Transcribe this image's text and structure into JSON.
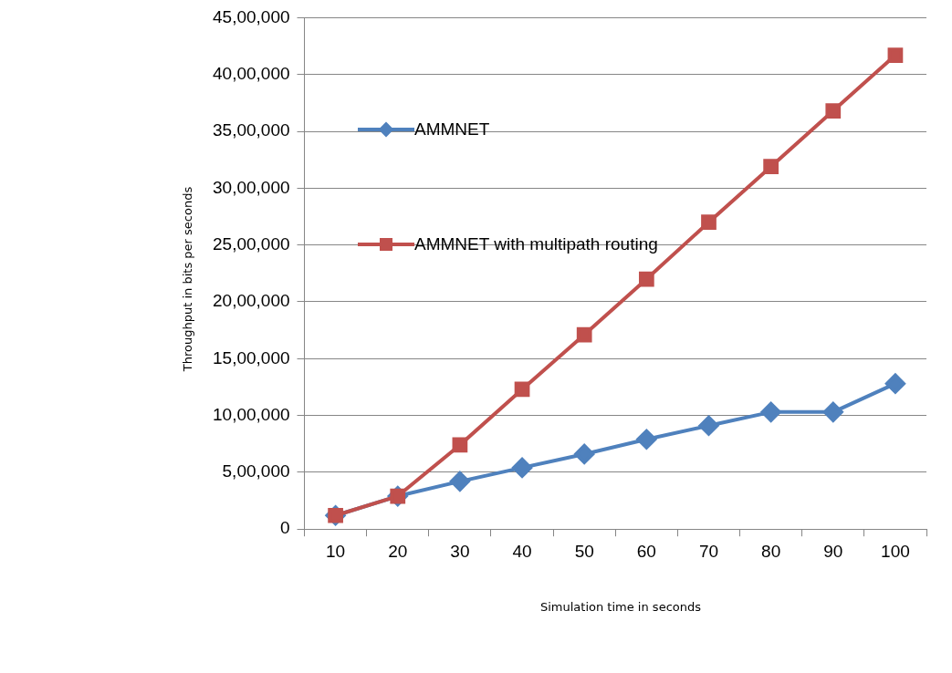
{
  "chart_data": {
    "type": "line",
    "xlabel": "Simulation time in seconds",
    "ylabel": "Throughput in bits per seconds",
    "categories": [
      "10",
      "20",
      "30",
      "40",
      "50",
      "60",
      "70",
      "80",
      "90",
      "100"
    ],
    "series": [
      {
        "name": "AMMNET",
        "color": "#4f81bd",
        "marker": "diamond",
        "values": [
          120000,
          290000,
          420000,
          540000,
          660000,
          790000,
          910000,
          1030000,
          1030000,
          1280000
        ]
      },
      {
        "name": "AMMNET with multipath routing",
        "color": "#c0504d",
        "marker": "square",
        "values": [
          120000,
          290000,
          740000,
          1230000,
          1710000,
          2200000,
          2700000,
          3190000,
          3680000,
          4170000
        ]
      }
    ],
    "ylim": [
      0,
      4500000
    ],
    "yticks": [
      {
        "value": 0,
        "label": "0"
      },
      {
        "value": 500000,
        "label": "5,00,000"
      },
      {
        "value": 1000000,
        "label": "10,00,000"
      },
      {
        "value": 1500000,
        "label": "15,00,000"
      },
      {
        "value": 2000000,
        "label": "20,00,000"
      },
      {
        "value": 2500000,
        "label": "25,00,000"
      },
      {
        "value": 3000000,
        "label": "30,00,000"
      },
      {
        "value": 3500000,
        "label": "35,00,000"
      },
      {
        "value": 4000000,
        "label": "40,00,000"
      },
      {
        "value": 4500000,
        "label": "45,00,000"
      }
    ],
    "grid": "y",
    "legend": "top left"
  }
}
